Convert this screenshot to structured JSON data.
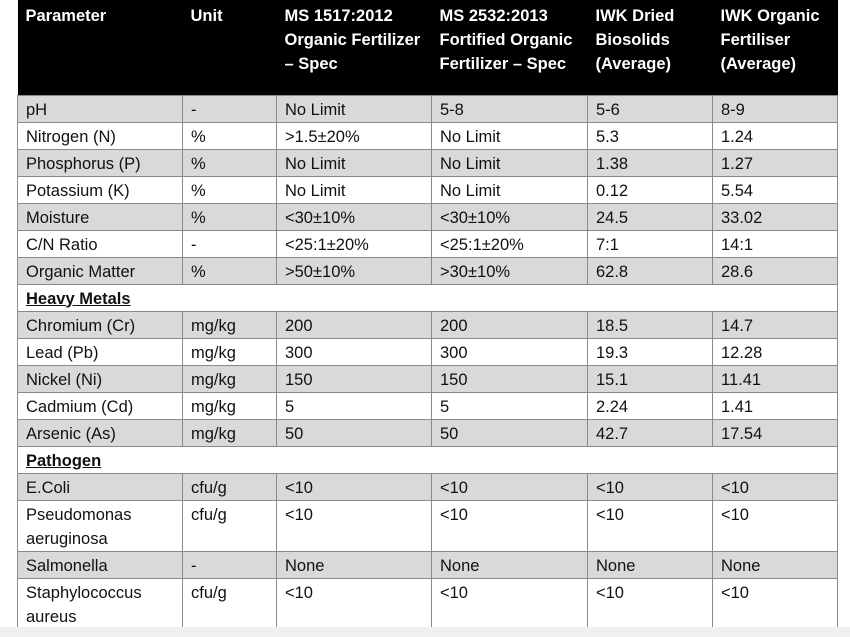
{
  "headers": [
    "Parameter",
    "Unit",
    "MS 1517:2012 Organic Fertilizer – Spec",
    "MS 2532:2013 Fortified Organic Fertilizer – Spec",
    "IWK Dried Biosolids (Average)",
    "IWK Organic Fertiliser (Average)"
  ],
  "group1": [
    {
      "cells": [
        "pH",
        "-",
        "No Limit",
        "5-8",
        "5-6",
        "8-9"
      ],
      "shade": true
    },
    {
      "cells": [
        "Nitrogen (N)",
        "%",
        ">1.5±20%",
        "No Limit",
        "5.3",
        "1.24"
      ],
      "shade": false
    },
    {
      "cells": [
        "Phosphorus (P)",
        "%",
        "No Limit",
        "No Limit",
        "1.38",
        "1.27"
      ],
      "shade": true
    },
    {
      "cells": [
        "Potassium (K)",
        "%",
        "No Limit",
        "No Limit",
        "0.12",
        "5.54"
      ],
      "shade": false
    },
    {
      "cells": [
        "Moisture",
        "%",
        "<30±10%",
        "<30±10%",
        "24.5",
        "33.02"
      ],
      "shade": true
    },
    {
      "cells": [
        "C/N Ratio",
        "-",
        "<25:1±20%",
        "<25:1±20%",
        "7:1",
        "14:1"
      ],
      "shade": false
    },
    {
      "cells": [
        "Organic Matter",
        "%",
        ">50±10%",
        ">30±10%",
        "62.8",
        "28.6"
      ],
      "shade": true
    }
  ],
  "section_heavy_metals": "Heavy Metals",
  "group2": [
    {
      "cells": [
        "Chromium (Cr)",
        "mg/kg",
        "200",
        "200",
        "18.5",
        "14.7"
      ],
      "shade": true
    },
    {
      "cells": [
        "Lead (Pb)",
        "mg/kg",
        "300",
        "300",
        "19.3",
        "12.28"
      ],
      "shade": false
    },
    {
      "cells": [
        "Nickel (Ni)",
        "mg/kg",
        "150",
        "150",
        "15.1",
        "11.41"
      ],
      "shade": true
    },
    {
      "cells": [
        "Cadmium (Cd)",
        "mg/kg",
        "5",
        "5",
        "2.24",
        "1.41"
      ],
      "shade": false
    },
    {
      "cells": [
        "Arsenic (As)",
        "mg/kg",
        "50",
        "50",
        "42.7",
        "17.54"
      ],
      "shade": true
    }
  ],
  "section_pathogen": "Pathogen",
  "group3": [
    {
      "cells": [
        "E.Coli",
        "cfu/g",
        "<10",
        "<10",
        "<10",
        "<10"
      ],
      "shade": true,
      "tall": false
    },
    {
      "cells": [
        "Pseudomonas aeruginosa",
        "cfu/g",
        "<10",
        "<10",
        "<10",
        "<10"
      ],
      "shade": false,
      "tall": true
    },
    {
      "cells": [
        "Salmonella",
        "-",
        "None",
        "None",
        "None",
        "None"
      ],
      "shade": true,
      "tall": false
    },
    {
      "cells": [
        "Staphylococcus aureus",
        "cfu/g",
        "<10",
        "<10",
        "<10",
        "<10"
      ],
      "shade": false,
      "tall": true
    }
  ],
  "colors": {
    "header_bg": "#000000",
    "header_text": "#ffffff",
    "shade_row": "#d9d9d9",
    "plain_row": "#ffffff",
    "grid": "#8a8a8a"
  }
}
